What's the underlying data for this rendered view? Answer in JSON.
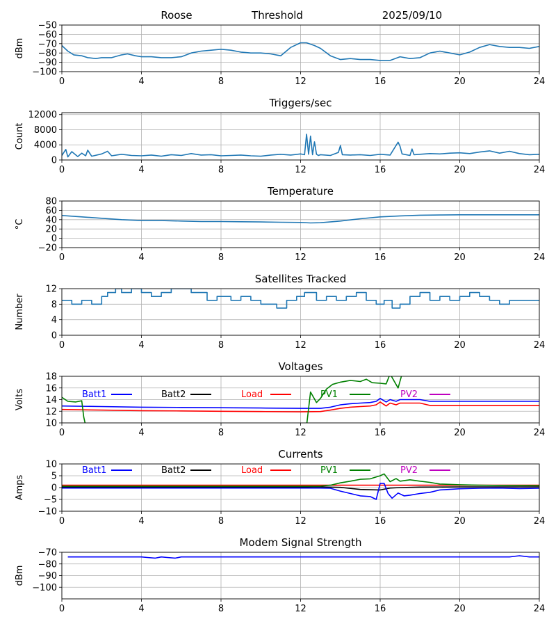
{
  "header": {
    "station": "Roose",
    "mode": "Threshold",
    "date": "2025/09/10"
  },
  "chart_data": [
    {
      "type": "line",
      "title": "",
      "xlabel": "",
      "ylabel": "dBm",
      "xlim": [
        0,
        24
      ],
      "ylim": [
        -100,
        -50
      ],
      "xticks": [
        "0",
        "4",
        "8",
        "12",
        "16",
        "20",
        "24"
      ],
      "yticks": [
        -100,
        -90,
        -80,
        -70,
        -60,
        -50
      ],
      "ytick_labels": [
        "−100",
        "−90",
        "−80",
        "−70",
        "−60",
        "−50"
      ],
      "grid": true,
      "series": [
        {
          "color": "#1f77b4",
          "x": [
            0,
            0.3,
            0.6,
            1,
            1.3,
            1.7,
            2,
            2.5,
            3,
            3.3,
            3.7,
            4,
            4.5,
            5,
            5.5,
            6,
            6.5,
            7,
            7.5,
            8,
            8.5,
            9,
            9.5,
            10,
            10.5,
            11,
            11.5,
            12,
            12.3,
            12.7,
            13,
            13.5,
            14,
            14.5,
            15,
            15.5,
            16,
            16.5,
            17,
            17.5,
            18,
            18.5,
            19,
            19.5,
            20,
            20.5,
            21,
            21.5,
            22,
            22.5,
            23,
            23.5,
            24
          ],
          "y": [
            -72,
            -78,
            -82,
            -83,
            -85,
            -86,
            -85,
            -85,
            -82,
            -81,
            -83,
            -84,
            -84,
            -85,
            -85,
            -84,
            -80,
            -78,
            -77,
            -76,
            -77,
            -79,
            -80,
            -80,
            -81,
            -83,
            -74,
            -69,
            -69,
            -72,
            -75,
            -83,
            -87,
            -86,
            -87,
            -87,
            -88,
            -88,
            -84,
            -86,
            -85,
            -80,
            -78,
            -80,
            -82,
            -79,
            -74,
            -71,
            -73,
            -74,
            -74,
            -75,
            -73
          ]
        }
      ]
    },
    {
      "type": "line",
      "title": "Triggers/sec",
      "xlabel": "",
      "ylabel": "Count",
      "xlim": [
        0,
        24
      ],
      "ylim": [
        0,
        12500
      ],
      "xticks": [
        "0",
        "4",
        "8",
        "12",
        "16",
        "20",
        "24"
      ],
      "yticks": [
        0,
        4000,
        8000,
        12000
      ],
      "ytick_labels": [
        "0",
        "4000",
        "8000",
        "12000"
      ],
      "grid": true,
      "series": [
        {
          "color": "#1f77b4",
          "x": [
            0,
            0.2,
            0.3,
            0.5,
            0.8,
            1,
            1.2,
            1.3,
            1.5,
            2,
            2.3,
            2.5,
            3,
            3.5,
            4,
            4.5,
            5,
            5.5,
            6,
            6.5,
            7,
            7.5,
            8,
            8.5,
            9,
            9.5,
            10,
            10.5,
            11,
            11.5,
            12,
            12.2,
            12.3,
            12.4,
            12.5,
            12.6,
            12.7,
            12.8,
            12.9,
            13,
            13.5,
            13.9,
            14,
            14.1,
            14.5,
            15,
            15.5,
            16,
            16.5,
            16.9,
            17,
            17.1,
            17.5,
            17.6,
            17.7,
            18,
            18.5,
            19,
            19.5,
            20,
            20.5,
            21,
            21.5,
            22,
            22.5,
            23,
            23.5,
            24
          ],
          "y": [
            1200,
            2800,
            800,
            2200,
            900,
            1800,
            1100,
            2600,
            1000,
            1600,
            2300,
            1100,
            1500,
            1200,
            1100,
            1300,
            1000,
            1400,
            1200,
            1700,
            1300,
            1400,
            1100,
            1200,
            1300,
            1100,
            1000,
            1300,
            1500,
            1300,
            1600,
            1400,
            6800,
            1500,
            6300,
            1400,
            4800,
            1500,
            1200,
            1400,
            1200,
            2000,
            3800,
            1400,
            1300,
            1400,
            1200,
            1500,
            1300,
            4700,
            3600,
            1600,
            1200,
            2900,
            1400,
            1500,
            1700,
            1600,
            1800,
            1900,
            1700,
            2100,
            2400,
            1800,
            2300,
            1700,
            1400,
            1500
          ]
        }
      ]
    },
    {
      "type": "line",
      "title": "Temperature",
      "xlabel": "",
      "ylabel": "°C",
      "xlim": [
        0,
        24
      ],
      "ylim": [
        -20,
        80
      ],
      "xticks": [
        "0",
        "4",
        "8",
        "12",
        "16",
        "20",
        "24"
      ],
      "yticks": [
        -20,
        0,
        20,
        40,
        60,
        80
      ],
      "ytick_labels": [
        "−20",
        "0",
        "20",
        "40",
        "60",
        "80"
      ],
      "grid": true,
      "series": [
        {
          "color": "#1f77b4",
          "x": [
            0,
            1,
            2,
            3,
            4,
            5,
            6,
            7,
            8,
            9,
            10,
            11,
            12,
            12.5,
            13,
            14,
            15,
            16,
            17,
            18,
            19,
            20,
            21,
            22,
            23,
            24
          ],
          "y": [
            49,
            46,
            43,
            40,
            38,
            38,
            37,
            36,
            36,
            35.5,
            35,
            34.5,
            34,
            33,
            33.5,
            37,
            42,
            46,
            48,
            49.5,
            50,
            50.5,
            50.5,
            50.5,
            50.5,
            50.5
          ]
        }
      ]
    },
    {
      "type": "line",
      "title": "Satellites Tracked",
      "xlabel": "",
      "ylabel": "Number",
      "xlim": [
        0,
        24
      ],
      "ylim": [
        0,
        12
      ],
      "xticks": [
        "0",
        "4",
        "8",
        "12",
        "16",
        "20",
        "24"
      ],
      "yticks": [
        0,
        4,
        8,
        12
      ],
      "ytick_labels": [
        "0",
        "4",
        "8",
        "12"
      ],
      "grid": true,
      "series": [
        {
          "color": "#1f77b4",
          "step": true,
          "x": [
            0,
            0.5,
            1,
            1.5,
            2,
            2.3,
            2.7,
            3,
            3.5,
            4,
            4.5,
            5,
            5.5,
            6,
            6.5,
            7,
            7.3,
            7.8,
            8.5,
            9,
            9.5,
            10,
            10.3,
            10.8,
            11.3,
            11.8,
            12.2,
            12.8,
            13.3,
            13.8,
            14.3,
            14.8,
            15.3,
            15.8,
            16.2,
            16.6,
            17,
            17.5,
            18,
            18.5,
            19,
            19.5,
            20,
            20.5,
            21,
            21.5,
            22,
            22.5,
            23,
            23.5,
            24
          ],
          "y": [
            9,
            8,
            9,
            8,
            10,
            11,
            12,
            11,
            12,
            11,
            10,
            11,
            12,
            12,
            11,
            11,
            9,
            10,
            9,
            10,
            9,
            8,
            8,
            7,
            9,
            10,
            11,
            9,
            10,
            9,
            10,
            11,
            9,
            8,
            9,
            7,
            8,
            10,
            11,
            9,
            10,
            9,
            10,
            11,
            10,
            9,
            8,
            9,
            9,
            9,
            9
          ]
        }
      ]
    },
    {
      "type": "line",
      "title": "Voltages",
      "xlabel": "",
      "ylabel": "Volts",
      "xlim": [
        0,
        24
      ],
      "ylim": [
        10,
        18
      ],
      "xticks": [
        "0",
        "4",
        "8",
        "12",
        "16",
        "20",
        "24"
      ],
      "yticks": [
        10,
        12,
        14,
        16,
        18
      ],
      "ytick_labels": [
        "10",
        "12",
        "14",
        "16",
        "18"
      ],
      "grid": true,
      "legend": [
        {
          "name": "Batt1",
          "color": "#0000ff"
        },
        {
          "name": "Batt2",
          "color": "#000000"
        },
        {
          "name": "Load",
          "color": "#ff0000"
        },
        {
          "name": "PV1",
          "color": "#008000"
        },
        {
          "name": "PV2",
          "color": "#bf00bf"
        }
      ],
      "series": [
        {
          "name": "Batt1",
          "color": "#0000ff",
          "x": [
            0,
            2,
            4,
            6,
            8,
            10,
            12,
            13,
            13.5,
            14,
            14.5,
            15,
            15.5,
            15.8,
            16,
            16.3,
            16.5,
            16.8,
            17,
            17.5,
            18,
            18.5,
            19,
            20,
            21,
            22,
            23,
            24
          ],
          "y": [
            12.9,
            12.8,
            12.7,
            12.65,
            12.6,
            12.55,
            12.5,
            12.5,
            12.7,
            13.1,
            13.3,
            13.4,
            13.5,
            13.7,
            14.2,
            13.6,
            14.0,
            13.7,
            14.0,
            14.0,
            14.0,
            13.7,
            13.7,
            13.7,
            13.7,
            13.7,
            13.7,
            13.7
          ]
        },
        {
          "name": "Load",
          "color": "#ff0000",
          "x": [
            0,
            2,
            4,
            6,
            8,
            10,
            12,
            13,
            13.5,
            14,
            14.5,
            15,
            15.5,
            15.8,
            16,
            16.3,
            16.5,
            16.8,
            17,
            17.5,
            18,
            18.5,
            19,
            20,
            21,
            22,
            23,
            24
          ],
          "y": [
            12.3,
            12.2,
            12.1,
            12.05,
            12.0,
            11.95,
            11.9,
            11.95,
            12.2,
            12.5,
            12.7,
            12.8,
            12.9,
            13.1,
            13.6,
            12.9,
            13.4,
            13.1,
            13.4,
            13.4,
            13.4,
            13.0,
            13.0,
            13.0,
            13.0,
            13.0,
            13.0,
            13.0
          ]
        },
        {
          "name": "PV1",
          "color": "#008000",
          "x": [
            0,
            0.3,
            0.7,
            1.0,
            1.1,
            1.2,
            12.3,
            12.5,
            12.8,
            13.0,
            13.3,
            13.6,
            14,
            14.5,
            15,
            15.3,
            15.6,
            16,
            16.3,
            16.5,
            16.7,
            16.9,
            17.1
          ],
          "y": [
            14.4,
            13.7,
            13.6,
            13.8,
            11.0,
            9.5,
            9.5,
            15.3,
            13.5,
            14.2,
            15.8,
            16.6,
            17.0,
            17.3,
            17.1,
            17.5,
            16.9,
            16.8,
            16.7,
            18.4,
            17.2,
            16.0,
            18.4
          ]
        }
      ]
    },
    {
      "type": "line",
      "title": "Currents",
      "xlabel": "",
      "ylabel": "Amps",
      "xlim": [
        0,
        24
      ],
      "ylim": [
        -10,
        10
      ],
      "xticks": [
        "0",
        "4",
        "8",
        "12",
        "16",
        "20",
        "24"
      ],
      "yticks": [
        -10,
        -5,
        0,
        5,
        10
      ],
      "ytick_labels": [
        "−10",
        "−5",
        "0",
        "5",
        "10"
      ],
      "grid": true,
      "legend": [
        {
          "name": "Batt1",
          "color": "#0000ff"
        },
        {
          "name": "Batt2",
          "color": "#000000"
        },
        {
          "name": "Load",
          "color": "#ff0000"
        },
        {
          "name": "PV1",
          "color": "#008000"
        },
        {
          "name": "PV2",
          "color": "#bf00bf"
        }
      ],
      "series": [
        {
          "name": "Batt2",
          "color": "#000000",
          "x": [
            0,
            2,
            4,
            6,
            8,
            10,
            12,
            13,
            14,
            15,
            16,
            16.5,
            17,
            18,
            20,
            22,
            24
          ],
          "y": [
            0.2,
            0.2,
            0.2,
            0.2,
            0.2,
            0.2,
            0.2,
            0.3,
            0.1,
            -0.8,
            -1.0,
            -0.2,
            0.0,
            0.2,
            0.3,
            0.3,
            0.3
          ]
        },
        {
          "name": "Load",
          "color": "#ff0000",
          "x": [
            0,
            2,
            4,
            6,
            8,
            10,
            12,
            14,
            16,
            18,
            20,
            22,
            24
          ],
          "y": [
            1.0,
            1.0,
            1.0,
            1.0,
            1.0,
            1.0,
            1.0,
            1.0,
            1.0,
            1.0,
            1.0,
            1.0,
            1.0
          ]
        },
        {
          "name": "PV1",
          "color": "#008000",
          "x": [
            0,
            2,
            4,
            6,
            8,
            10,
            12,
            13,
            13.5,
            14,
            14.5,
            15,
            15.5,
            16,
            16.2,
            16.5,
            16.8,
            17,
            17.5,
            18,
            18.5,
            19,
            20,
            21,
            22,
            24
          ],
          "y": [
            0.6,
            0.6,
            0.6,
            0.6,
            0.6,
            0.6,
            0.6,
            0.6,
            1.0,
            2.0,
            2.7,
            3.5,
            3.7,
            5.0,
            5.8,
            2.5,
            3.8,
            2.7,
            3.3,
            2.7,
            2.2,
            1.5,
            1.2,
            1.0,
            0.9,
            0.8
          ]
        },
        {
          "name": "Batt1",
          "color": "#0000ff",
          "x": [
            0,
            2,
            4,
            6,
            8,
            10,
            12,
            13,
            13.5,
            14,
            14.5,
            15,
            15.5,
            15.8,
            16,
            16.2,
            16.4,
            16.6,
            16.9,
            17.2,
            17.5,
            18,
            18.5,
            19,
            20,
            21,
            22,
            23,
            24
          ],
          "y": [
            -0.2,
            -0.2,
            -0.2,
            -0.2,
            -0.2,
            -0.2,
            -0.2,
            -0.2,
            -0.3,
            -1.5,
            -2.5,
            -3.5,
            -3.8,
            -5.0,
            1.8,
            1.8,
            -2.5,
            -4.5,
            -2.3,
            -3.5,
            -3.2,
            -2.5,
            -2.0,
            -1.0,
            -0.5,
            -0.3,
            -0.2,
            -0.4,
            -0.3
          ]
        }
      ]
    },
    {
      "type": "line",
      "title": "Modem Signal Strength",
      "xlabel": "",
      "ylabel": "dBm",
      "xlim": [
        0,
        24
      ],
      "ylim": [
        -110,
        -70
      ],
      "xticks": [
        "0",
        "4",
        "8",
        "12",
        "16",
        "20",
        "24"
      ],
      "yticks": [
        -100,
        -90,
        -80,
        -70
      ],
      "ytick_labels": [
        "−100",
        "−90",
        "−80",
        "−70"
      ],
      "grid": true,
      "series": [
        {
          "color": "#0000ff",
          "x": [
            0.3,
            1,
            2,
            3,
            4,
            4.3,
            4.7,
            5,
            5.3,
            5.7,
            6,
            7,
            8,
            9,
            10,
            11,
            12,
            13,
            14,
            15,
            16,
            17,
            18,
            19,
            20,
            21,
            22,
            22.5,
            23,
            23.5,
            24
          ],
          "y": [
            -74,
            -74,
            -74,
            -74,
            -74,
            -74.5,
            -75,
            -74,
            -74.5,
            -75,
            -74,
            -74,
            -74,
            -74,
            -74,
            -74,
            -74,
            -74,
            -74,
            -74,
            -74,
            -74,
            -74,
            -74,
            -74,
            -74,
            -74,
            -74,
            -73,
            -74,
            -74
          ]
        }
      ]
    }
  ]
}
